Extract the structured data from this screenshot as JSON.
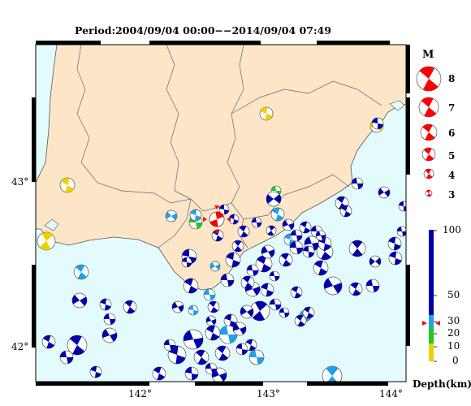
{
  "title": "Period:2004/09/04 00:00−−2014/09/04 07:49",
  "lon_ticks": [
    "142°",
    "143°",
    "144°"
  ],
  "lat_ticks": [
    "43°",
    "42°"
  ],
  "magnitude_legend": {
    "title": "M",
    "entries": [
      "8",
      "7",
      "6",
      "5",
      "4",
      "3"
    ]
  },
  "depth_scale": {
    "unit_label": "Depth(km)",
    "ticks": [
      "100",
      "50",
      "30",
      "20",
      "10",
      "0"
    ],
    "colors": {
      "deep": "#0000aa",
      "mid": "#20a0e8",
      "shallow_green": "#1ec81e",
      "surface_yellow": "#f0d000"
    }
  },
  "colors": {
    "land": "#fde5c8",
    "sea": "#e4fbfd",
    "highlight_event": "#ff0000"
  }
}
